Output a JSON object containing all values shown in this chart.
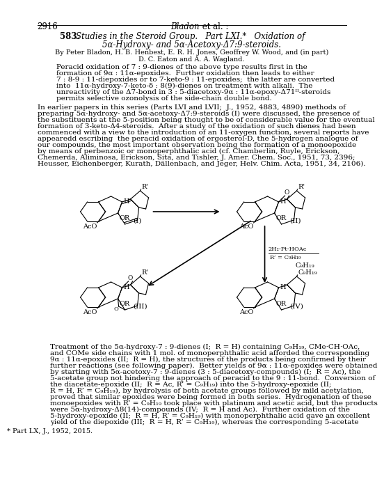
{
  "page_number": "2916",
  "bg_color": "#ffffff",
  "text_color": "#000000",
  "title_line1": "583.   Studies in the Steroid Group.   Part LXI.*   Oxidation of",
  "title_line2": "5α-Hydroxy- and 5α-Acetoxy-Δ7:9-steroids.",
  "authors1": "By Peter Bladon, H. B. Henbest, E. R. H. Jones, Geoffrey W. Wood, and (in part)",
  "authors2": "D. C. Eaton and A. A. Wagland.",
  "abstract_lines": [
    "Peracid oxidation of 7 : 9-dienes of the above type results first in the",
    "formation of 9α : 11α-epoxides.  Further oxidation then leads to either",
    "7 : 8-9 : 11-diepoxides or to 7-keto-9 : 11-epoxides;  the latter are converted",
    "into  11α-hydroxy-7-keto-δ : 8(9)-dienes on treatment with alkali.  The",
    "unreactivity of the Δ7-bond in 3 : 5-diacetoxy-9α : 11α-epoxy-Δ71ᴵᴵ-steroids",
    "permits selective ozonolysis of the side-chain double bond."
  ],
  "para_lines": [
    "In earlier papers in this series (Parts LVI and LVII;  J., 1952, 4883, 4890) methods of",
    "preparing 5α-hydroxy- and 5α-acetoxy-Δ7:9-steroids (I) were discussed, the presence of",
    "the substituents at the 5-position being thought to be of considerable value for the eventual",
    "formation of 3-keto-Δ4-steroids.  After a study of the oxidation of such dienes had been",
    "commenced with a view to the introduction of an 11-oxygen function, several reports have",
    "appearedd escribing  the peracid oxidation of ergosterol-D, the 5-hydrogen analogue of",
    "our compounds, the most important observation being the formation of a monoepoxide",
    "by means of perbenzoic or monoperphthalic acid (cf. Chamberlin, Ruyle, Erickson,",
    "Chemerda, Aliminosa, Erickson, Sita, and Tishler, J. Amer. Chem. Soc., 1951, 73, 2396;",
    "Heusser, Eichenberger, Kurath, Dällenbach, and Jeger, Helv. Chim. Acta, 1951, 34, 2106)."
  ],
  "caption_lines": [
    "Treatment of the 5α-hydroxy-7 : 9-dienes (I;  R = H) containing C₉H₁₉, CMe·CH·OAc,",
    "and COMe side chains with 1 mol. of monoperphthalic acid afforded the corresponding",
    "9α : 11α-epoxides (II;  R = H), the structures of the products being confirmed by their",
    "further reactions (see following paper).  Better yields of 9α : 11α-epoxides were obtained",
    "by starting with 5α-acetoxy-7 : 9-dienes (3 : 5-diacetoxy-compounds) (I;  R = Ac), the",
    "5-acetate group not hindering the approach of peracid to the 9 : 11-bond.  Conversion of",
    "the diacetate-epoxide (II;  R = Ac, R’ = C₉H₁₉) into the 5-hydroxy-epoxide (II;",
    "R = H, R’ = C₉H₁₉), by hydrolysis of both acetate groups followed by mild acetylation,",
    "proved that similar epoxides were being formed in both series.  Hydrogenation of these",
    "monoepoxides with R’ = C₉H₁₉ took place with platinum and acetic acid, but the products",
    "were 5α-hydroxy-Δ8(14)-compounds (IV;  R = H and Ac).  Further oxidation of the",
    "5-hydroxy-epoxide (II;  R = H, R’ = C₉H₁₉) with monoperphthalic acid gave an excellent",
    "yield of the diepoxide (III;  R = H, R’ = C₉H₁₉), whereas the corresponding 5-acetate"
  ],
  "footnote": "* Part LX, J., 1952, 2015."
}
